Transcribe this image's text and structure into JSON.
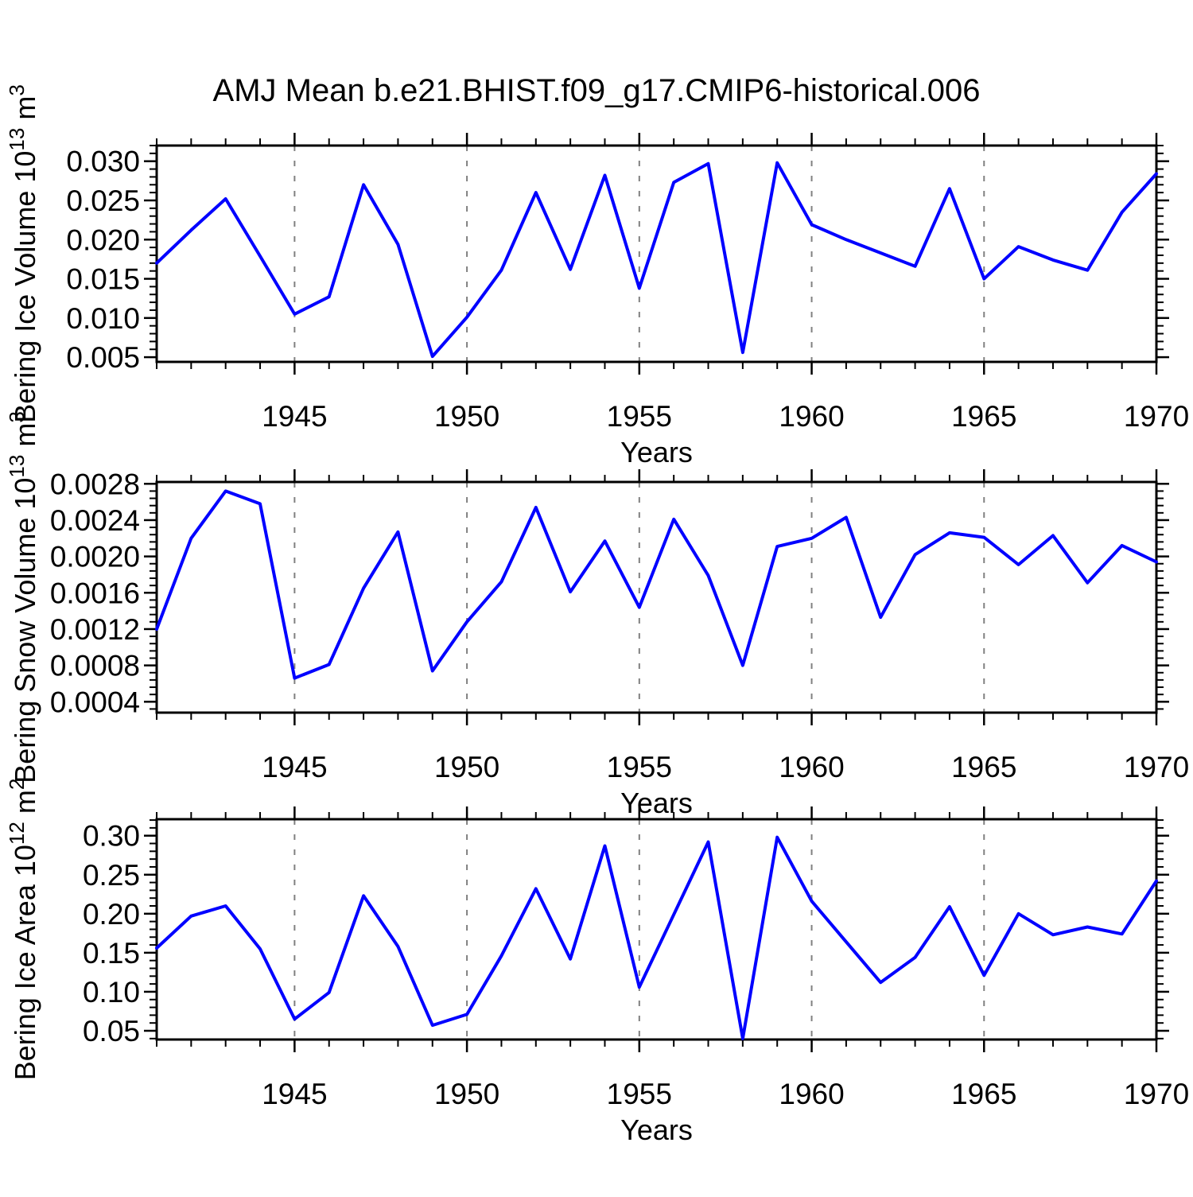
{
  "title": "AMJ Mean b.e21.BHIST.f09_g17.CMIP6-historical.006",
  "styles": {
    "background": "#ffffff",
    "line_color": "#0000ff",
    "frame_color": "#000000",
    "grid_color": "#808080",
    "text_color": "#000000"
  },
  "x_axis": {
    "label": "Years",
    "range": [
      1941,
      1970
    ],
    "years": [
      1941,
      1942,
      1943,
      1944,
      1945,
      1946,
      1947,
      1948,
      1949,
      1950,
      1951,
      1952,
      1953,
      1954,
      1955,
      1956,
      1957,
      1958,
      1959,
      1960,
      1961,
      1962,
      1963,
      1964,
      1965,
      1966,
      1967,
      1968,
      1969,
      1970
    ],
    "major_ticks": [
      1945,
      1950,
      1955,
      1960,
      1965,
      1970
    ],
    "major_tick_labels": [
      "1945",
      "1950",
      "1955",
      "1960",
      "1965",
      "1970"
    ],
    "gridlines": [
      1945,
      1950,
      1955,
      1960,
      1965
    ]
  },
  "chart_data": [
    {
      "type": "line",
      "name": "bering-ice-volume",
      "ylabel_plain": "Bering Ice Volume 10^13 m^3",
      "ylabel_segments": [
        "Bering Ice Volume 10",
        {
          "sup": "13"
        },
        " m",
        {
          "sup": "3"
        }
      ],
      "xlabel": "Years",
      "ylim": [
        0.0044,
        0.032
      ],
      "ytick_major": [
        0.005,
        0.01,
        0.015,
        0.02,
        0.025,
        0.03
      ],
      "ytick_labels": [
        "0.005",
        "0.010",
        "0.015",
        "0.020",
        "0.025",
        "0.030"
      ],
      "ytick_minor_step": 0.001,
      "values": [
        0.017,
        0.0212,
        0.0252,
        0.0179,
        0.0105,
        0.0127,
        0.027,
        0.0194,
        0.0051,
        0.0101,
        0.0161,
        0.026,
        0.0162,
        0.0282,
        0.0138,
        0.0273,
        0.0297,
        0.0056,
        0.0298,
        0.0219,
        0.02,
        0.0183,
        0.0166,
        0.0265,
        0.015,
        0.0191,
        0.0174,
        0.0161,
        0.0235,
        0.0284
      ]
    },
    {
      "type": "line",
      "name": "bering-snow-volume",
      "ylabel_plain": "Bering Snow Volume 10^13 m^3",
      "ylabel_segments": [
        "Bering Snow Volume 10",
        {
          "sup": "13"
        },
        " m",
        {
          "sup": "3"
        }
      ],
      "xlabel": "Years",
      "ylim": [
        0.00028,
        0.00282
      ],
      "ytick_major": [
        0.0004,
        0.0008,
        0.0012,
        0.0016,
        0.002,
        0.0024,
        0.0028
      ],
      "ytick_labels": [
        "0.0004",
        "0.0008",
        "0.0012",
        "0.0016",
        "0.0020",
        "0.0024",
        "0.0028"
      ],
      "ytick_minor_step": 8e-05,
      "values": [
        0.0012,
        0.0022,
        0.00272,
        0.00258,
        0.00066,
        0.00081,
        0.00165,
        0.00227,
        0.00074,
        0.00128,
        0.00172,
        0.00254,
        0.00161,
        0.00217,
        0.00144,
        0.00241,
        0.00179,
        0.0008,
        0.00211,
        0.0022,
        0.00243,
        0.00133,
        0.00202,
        0.00226,
        0.00221,
        0.00191,
        0.00223,
        0.00171,
        0.00212,
        0.00194
      ]
    },
    {
      "type": "line",
      "name": "bering-ice-area",
      "ylabel_plain": "Bering Ice Area 10^12 m^2",
      "ylabel_segments": [
        "Bering Ice Area 10",
        {
          "sup": "12"
        },
        " m",
        {
          "sup": "2"
        }
      ],
      "xlabel": "Years",
      "ylim": [
        0.0388,
        0.3211
      ],
      "ytick_major": [
        0.05,
        0.1,
        0.15,
        0.2,
        0.25,
        0.3
      ],
      "ytick_labels": [
        "0.05",
        "0.10",
        "0.15",
        "0.20",
        "0.25",
        "0.30"
      ],
      "ytick_minor_step": 0.01,
      "values": [
        0.156,
        0.197,
        0.21,
        0.155,
        0.065,
        0.099,
        0.223,
        0.158,
        0.057,
        0.071,
        0.146,
        0.232,
        0.142,
        0.287,
        0.106,
        0.199,
        0.292,
        0.04,
        0.298,
        0.216,
        0.164,
        0.112,
        0.144,
        0.209,
        0.121,
        0.2,
        0.173,
        0.183,
        0.174,
        0.242
      ]
    }
  ]
}
